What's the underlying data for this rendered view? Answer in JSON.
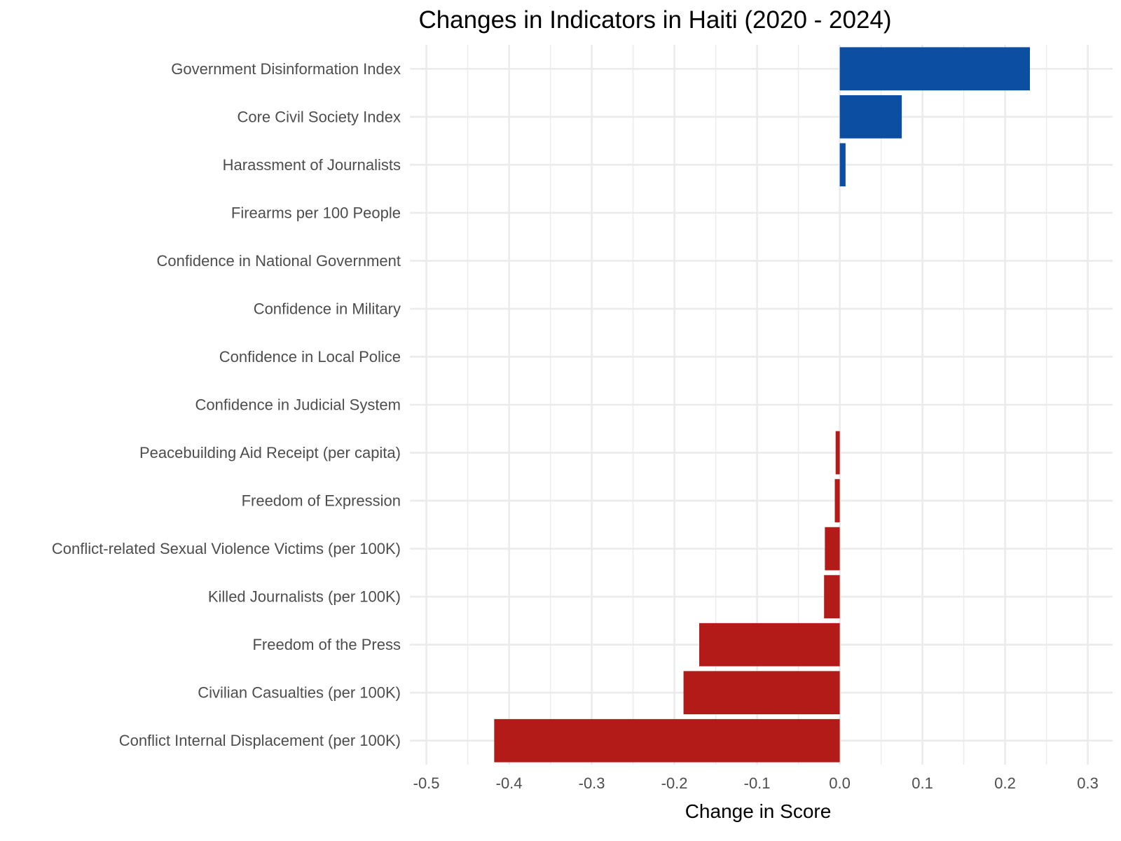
{
  "chart_data": {
    "type": "bar",
    "orientation": "horizontal",
    "title": "Changes in Indicators in Haiti (2020 - 2024)",
    "xlabel": "Change in Score",
    "ylabel": "",
    "xlim": [
      -0.52,
      0.33
    ],
    "x_ticks": [
      "-0.5",
      "-0.4",
      "-0.3",
      "-0.2",
      "-0.1",
      "0.0",
      "0.1",
      "0.2",
      "0.3"
    ],
    "grid": true,
    "legend": "none",
    "colors": {
      "positive": "#0B4EA2",
      "negative": "#B31B18"
    },
    "categories": [
      "Government Disinformation Index",
      "Core Civil Society Index",
      "Harassment of Journalists",
      "Firearms per 100 People",
      "Confidence in National Government",
      "Confidence in Military",
      "Confidence in Local Police",
      "Confidence in Judicial System",
      "Peacebuilding Aid Receipt (per capita)",
      "Freedom of Expression",
      "Conflict-related Sexual Violence Victims (per 100K)",
      "Killed Journalists (per 100K)",
      "Freedom of the Press",
      "Civilian Casualties (per 100K)",
      "Conflict Internal Displacement (per 100K)"
    ],
    "values": [
      0.23,
      0.075,
      0.007,
      0.0,
      0.0,
      0.0,
      0.0,
      0.0,
      -0.005,
      -0.006,
      -0.018,
      -0.019,
      -0.17,
      -0.189,
      -0.418
    ]
  }
}
